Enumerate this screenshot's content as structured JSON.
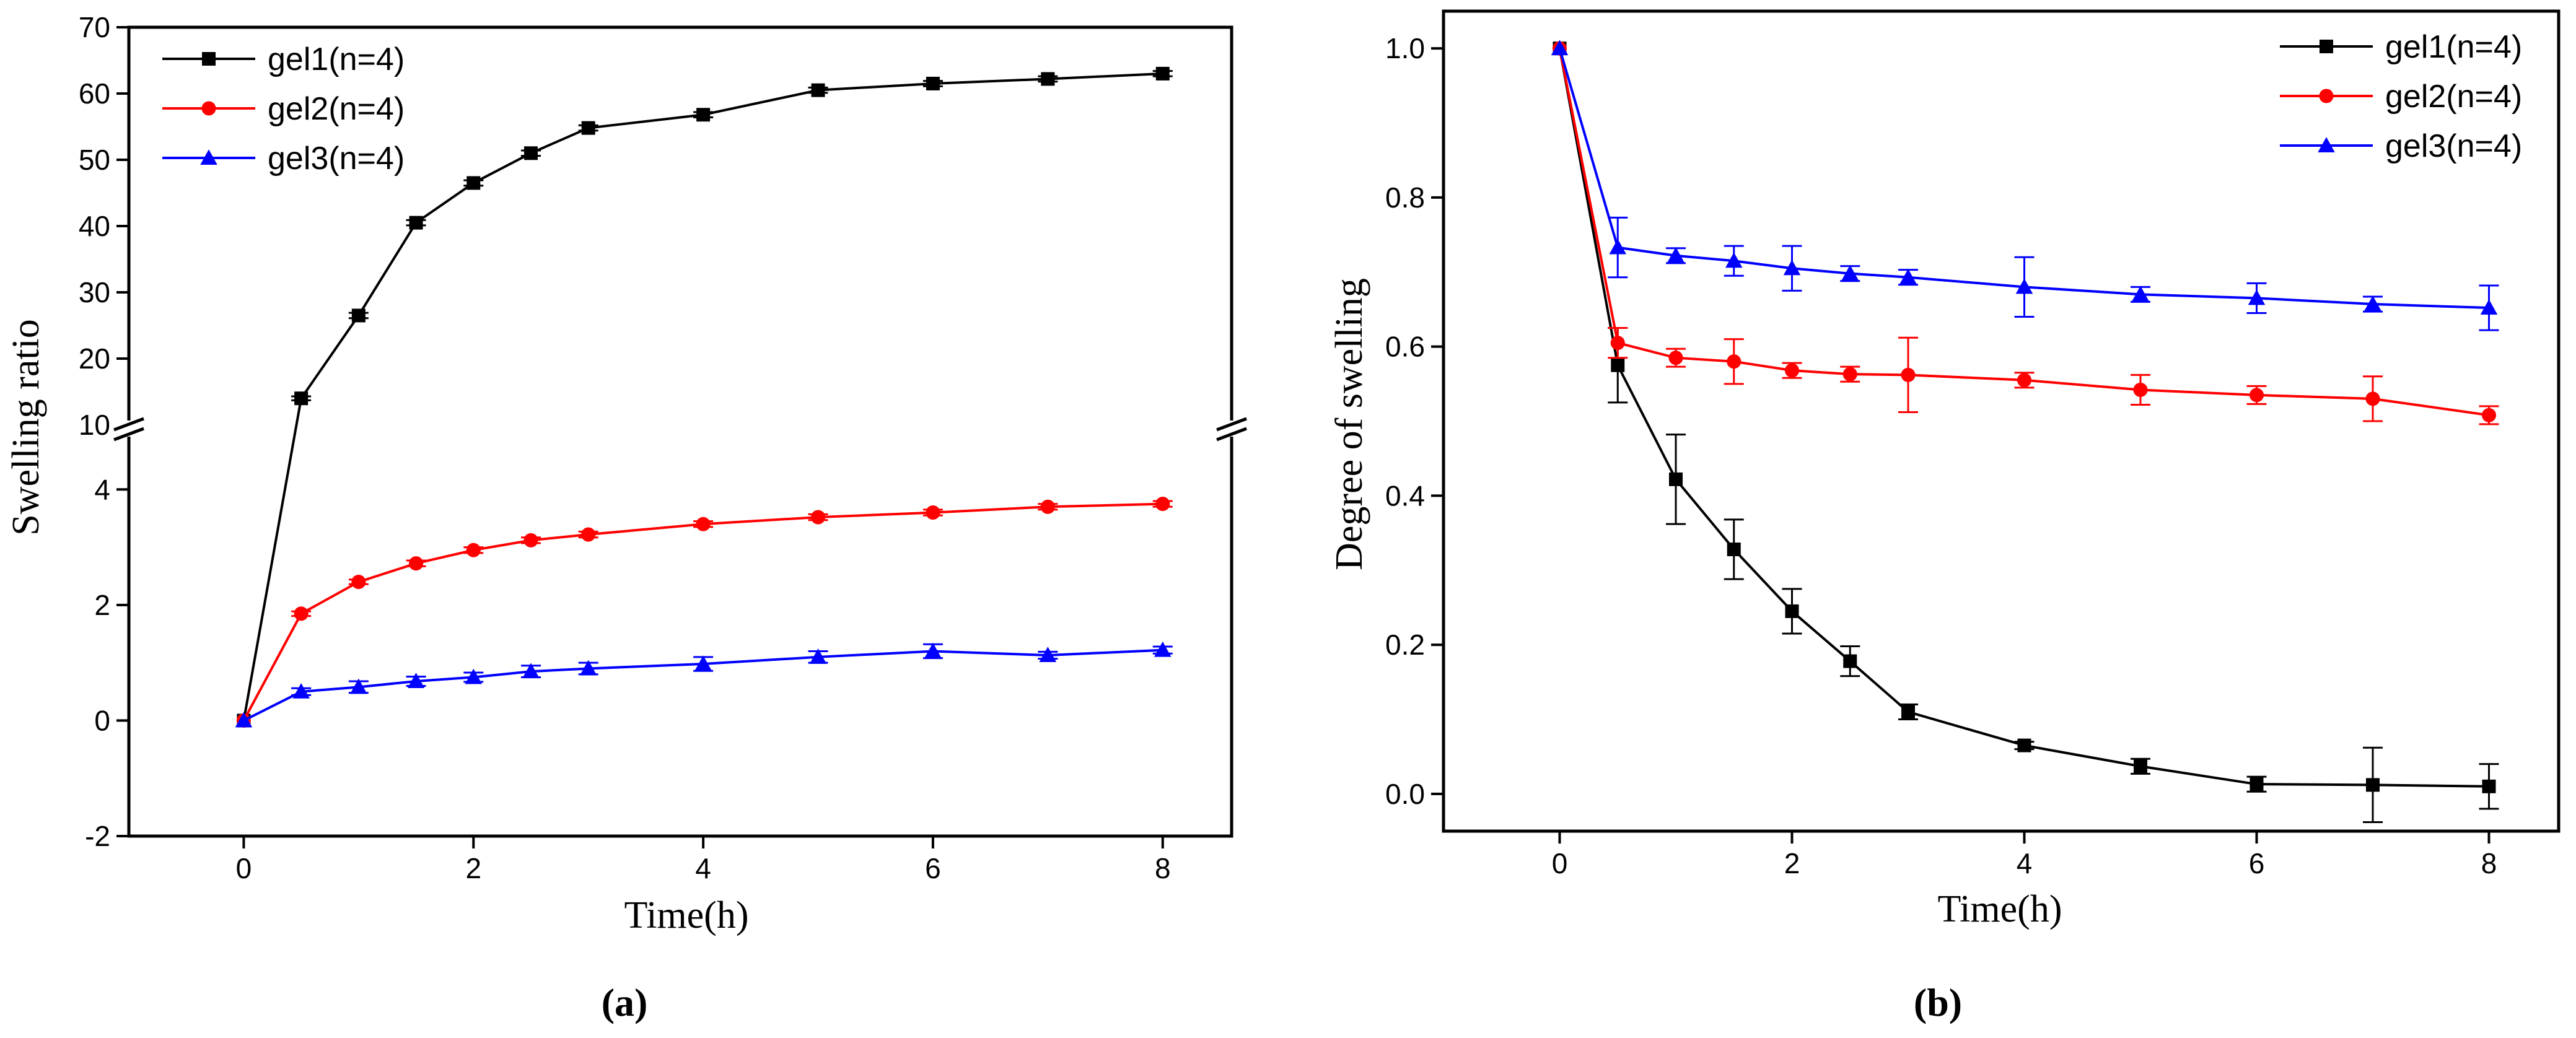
{
  "chart_data": [
    {
      "type": "line",
      "panel": "a",
      "panel_label": "(a)",
      "xlabel": "Time(h)",
      "ylabel": "Swelling ratio",
      "xlim": [
        -1,
        8.6
      ],
      "xticks": [
        0,
        2,
        4,
        6,
        8
      ],
      "y_break": {
        "lower": {
          "ylim": [
            -2,
            5
          ],
          "ticks": [
            -2,
            0,
            2,
            4
          ]
        },
        "upper": {
          "ylim": [
            10,
            70
          ],
          "ticks": [
            10,
            20,
            30,
            40,
            50,
            60,
            70
          ]
        }
      },
      "legend_position": "top-left",
      "series": [
        {
          "name": "gel1(n=4)",
          "color": "#000000",
          "marker": "square",
          "x": [
            0,
            0.5,
            1,
            1.5,
            2,
            2.5,
            3,
            4,
            5,
            6,
            7,
            8
          ],
          "y": [
            0,
            14.0,
            26.5,
            40.5,
            46.5,
            51.0,
            54.8,
            56.8,
            60.5,
            61.5,
            62.2,
            63.0
          ],
          "err": [
            0,
            0.3,
            0.4,
            0.4,
            0.4,
            0.4,
            0.4,
            0.4,
            0.4,
            0.4,
            0.4,
            0.4
          ]
        },
        {
          "name": "gel2(n=4)",
          "color": "#ff0000",
          "marker": "circle",
          "x": [
            0,
            0.5,
            1,
            1.5,
            2,
            2.5,
            3,
            4,
            5,
            6,
            7,
            8
          ],
          "y": [
            0,
            1.85,
            2.4,
            2.72,
            2.95,
            3.12,
            3.22,
            3.4,
            3.52,
            3.6,
            3.7,
            3.75
          ],
          "err": [
            0,
            0.04,
            0.04,
            0.05,
            0.05,
            0.05,
            0.05,
            0.05,
            0.05,
            0.05,
            0.05,
            0.05
          ]
        },
        {
          "name": "gel3(n=4)",
          "color": "#0000ff",
          "marker": "triangle",
          "x": [
            0,
            0.5,
            1,
            1.5,
            2,
            2.5,
            3,
            4,
            5,
            6,
            7,
            8
          ],
          "y": [
            0,
            0.5,
            0.58,
            0.68,
            0.75,
            0.85,
            0.9,
            0.98,
            1.1,
            1.2,
            1.13,
            1.22
          ],
          "err": [
            0,
            0.06,
            0.1,
            0.08,
            0.08,
            0.1,
            0.1,
            0.12,
            0.1,
            0.12,
            0.06,
            0.06
          ]
        }
      ]
    },
    {
      "type": "line",
      "panel": "b",
      "panel_label": "(b)",
      "xlabel": "Time(h)",
      "ylabel": "Degree of swelling",
      "xlim": [
        -1,
        8.6
      ],
      "xticks": [
        0,
        2,
        4,
        6,
        8
      ],
      "ylim": [
        -0.05,
        1.05
      ],
      "yticks": [
        0.0,
        0.2,
        0.4,
        0.6,
        0.8,
        1.0
      ],
      "legend_position": "top-right",
      "series": [
        {
          "name": "gel1(n=4)",
          "color": "#000000",
          "marker": "square",
          "x": [
            0,
            0.5,
            1,
            1.5,
            2,
            2.5,
            3,
            4,
            5,
            6,
            7,
            8
          ],
          "y": [
            1.0,
            0.575,
            0.422,
            0.328,
            0.245,
            0.178,
            0.11,
            0.065,
            0.037,
            0.013,
            0.012,
            0.01
          ],
          "err": [
            0,
            0.05,
            0.06,
            0.04,
            0.03,
            0.02,
            0.01,
            0.005,
            0.01,
            0.01,
            0.05,
            0.03
          ]
        },
        {
          "name": "gel2(n=4)",
          "color": "#ff0000",
          "marker": "circle",
          "x": [
            0,
            0.5,
            1,
            1.5,
            2,
            2.5,
            3,
            4,
            5,
            6,
            7,
            8
          ],
          "y": [
            1.0,
            0.605,
            0.585,
            0.58,
            0.568,
            0.563,
            0.562,
            0.555,
            0.542,
            0.535,
            0.53,
            0.508
          ],
          "err": [
            0,
            0.02,
            0.012,
            0.03,
            0.01,
            0.01,
            0.05,
            0.01,
            0.02,
            0.012,
            0.03,
            0.012
          ]
        },
        {
          "name": "gel3(n=4)",
          "color": "#0000ff",
          "marker": "triangle",
          "x": [
            0,
            0.5,
            1,
            1.5,
            2,
            2.5,
            3,
            4,
            5,
            6,
            7,
            8
          ],
          "y": [
            1.0,
            0.733,
            0.722,
            0.715,
            0.705,
            0.698,
            0.693,
            0.68,
            0.67,
            0.665,
            0.657,
            0.652
          ],
          "err": [
            0,
            0.04,
            0.01,
            0.02,
            0.03,
            0.01,
            0.01,
            0.04,
            0.01,
            0.02,
            0.01,
            0.03
          ]
        }
      ]
    }
  ]
}
